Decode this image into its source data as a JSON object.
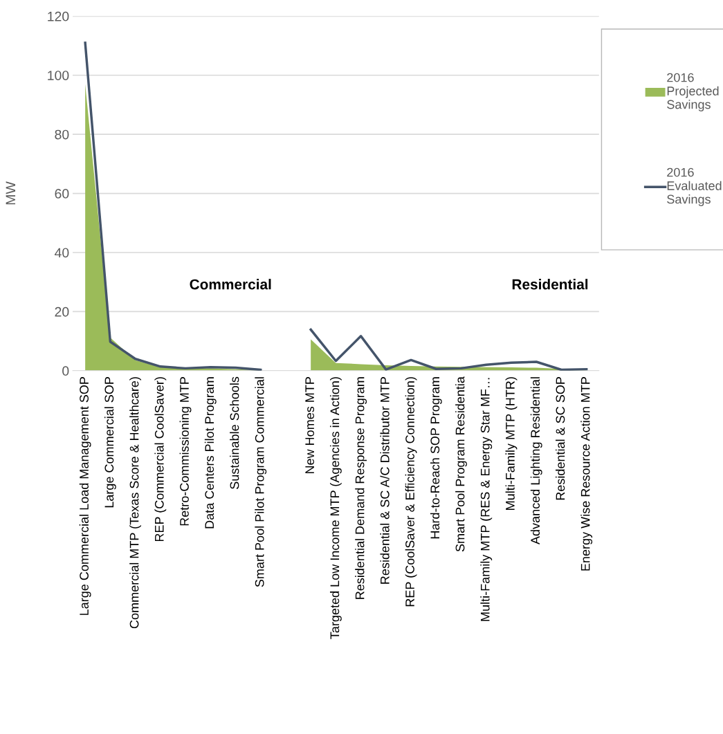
{
  "chart_data": {
    "type": "area",
    "ylabel": "MW",
    "categories": [
      "Large Commercial Load Management SOP",
      "Large Commercial SOP",
      "Commercial MTP (Texas Score & Healthcare)",
      "REP (Commercial CoolSaver)",
      "Retro-Commissioning MTP",
      "Data Centers Pilot Program",
      "Sustainable Schools",
      "Smart Pool Pilot Program Commercial",
      null,
      "New Homes MTP",
      "Targeted Low Income MTP (Agencies in Action)",
      "Residential Demand Response Program",
      "Residential & SC A/C Distributor MTP",
      "REP (CoolSaver & Efficiency Connection)",
      "Hard-to-Reach SOP Program",
      "Smart Pool Program Residentia",
      "Multi-Family MTP (RES & Energy Star MF…",
      "Multi-Family MTP (HTR)",
      "Advanced Lighting Residential",
      "Residential & SC SOP",
      "Energy Wise Resource Action MTP"
    ],
    "series": [
      {
        "name": "2016 Projected Savings",
        "color": "#9bbb59",
        "values": [
          97,
          11.2,
          3.5,
          1.2,
          0.9,
          0.8,
          0.5,
          0.2,
          null,
          10.6,
          2.6,
          2.2,
          1.8,
          1.6,
          1.4,
          1.3,
          1.2,
          1.1,
          1.0,
          0.6,
          0.3
        ]
      },
      {
        "name": "2016 Evaluated Savings",
        "type": "line",
        "color": "#44546a",
        "values": [
          111,
          9.8,
          4.0,
          1.4,
          0.8,
          1.2,
          1.0,
          0.3,
          null,
          13.9,
          3.3,
          11.7,
          0.4,
          3.6,
          0.6,
          0.8,
          2.0,
          2.7,
          3.0,
          0.3,
          0.5
        ]
      }
    ],
    "ylim": [
      0,
      120
    ],
    "yticks": [
      0,
      20,
      40,
      60,
      80,
      100,
      120
    ],
    "grid": "y",
    "legend": "right",
    "annotations": [
      "Commercial",
      "Residential"
    ]
  }
}
